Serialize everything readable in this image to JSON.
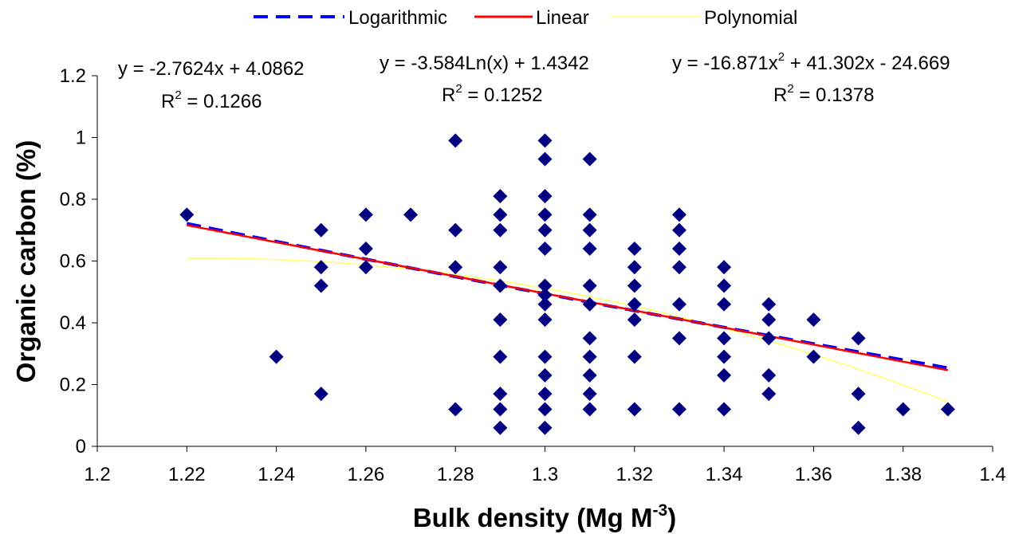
{
  "chart_data": {
    "type": "scatter",
    "xlabel": "Bulk density (Mg M",
    "xlabel_sup": "-3",
    "xlabel_suffix": ")",
    "ylabel": "Organic carbon (%)",
    "xlim": [
      1.2,
      1.4
    ],
    "ylim": [
      0,
      1.2
    ],
    "xticks": [
      "1.2",
      "1.22",
      "1.24",
      "1.26",
      "1.28",
      "1.3",
      "1.32",
      "1.34",
      "1.36",
      "1.38",
      "1.4"
    ],
    "yticks": [
      "0",
      "0.2",
      "0.4",
      "0.6",
      "0.8",
      "1",
      "1.2"
    ],
    "grid": false,
    "legend_position": "top",
    "marker_color": "#000080",
    "points": [
      [
        1.22,
        0.75
      ],
      [
        1.24,
        0.29
      ],
      [
        1.25,
        0.7
      ],
      [
        1.25,
        0.58
      ],
      [
        1.25,
        0.52
      ],
      [
        1.25,
        0.17
      ],
      [
        1.26,
        0.75
      ],
      [
        1.26,
        0.64
      ],
      [
        1.26,
        0.58
      ],
      [
        1.27,
        0.75
      ],
      [
        1.28,
        0.99
      ],
      [
        1.28,
        0.7
      ],
      [
        1.28,
        0.58
      ],
      [
        1.28,
        0.12
      ],
      [
        1.29,
        0.81
      ],
      [
        1.29,
        0.75
      ],
      [
        1.29,
        0.7
      ],
      [
        1.29,
        0.58
      ],
      [
        1.29,
        0.52
      ],
      [
        1.29,
        0.41
      ],
      [
        1.29,
        0.29
      ],
      [
        1.29,
        0.17
      ],
      [
        1.29,
        0.12
      ],
      [
        1.29,
        0.06
      ],
      [
        1.3,
        0.99
      ],
      [
        1.3,
        0.93
      ],
      [
        1.3,
        0.81
      ],
      [
        1.3,
        0.75
      ],
      [
        1.3,
        0.7
      ],
      [
        1.3,
        0.64
      ],
      [
        1.3,
        0.52
      ],
      [
        1.3,
        0.49
      ],
      [
        1.3,
        0.46
      ],
      [
        1.3,
        0.41
      ],
      [
        1.3,
        0.29
      ],
      [
        1.3,
        0.23
      ],
      [
        1.3,
        0.17
      ],
      [
        1.3,
        0.12
      ],
      [
        1.3,
        0.06
      ],
      [
        1.31,
        0.93
      ],
      [
        1.31,
        0.75
      ],
      [
        1.31,
        0.7
      ],
      [
        1.31,
        0.64
      ],
      [
        1.31,
        0.52
      ],
      [
        1.31,
        0.46
      ],
      [
        1.31,
        0.35
      ],
      [
        1.31,
        0.29
      ],
      [
        1.31,
        0.23
      ],
      [
        1.31,
        0.17
      ],
      [
        1.31,
        0.12
      ],
      [
        1.32,
        0.64
      ],
      [
        1.32,
        0.58
      ],
      [
        1.32,
        0.52
      ],
      [
        1.32,
        0.46
      ],
      [
        1.32,
        0.41
      ],
      [
        1.32,
        0.29
      ],
      [
        1.32,
        0.12
      ],
      [
        1.33,
        0.75
      ],
      [
        1.33,
        0.7
      ],
      [
        1.33,
        0.64
      ],
      [
        1.33,
        0.58
      ],
      [
        1.33,
        0.46
      ],
      [
        1.33,
        0.35
      ],
      [
        1.33,
        0.12
      ],
      [
        1.34,
        0.58
      ],
      [
        1.34,
        0.52
      ],
      [
        1.34,
        0.46
      ],
      [
        1.34,
        0.35
      ],
      [
        1.34,
        0.29
      ],
      [
        1.34,
        0.23
      ],
      [
        1.34,
        0.12
      ],
      [
        1.35,
        0.46
      ],
      [
        1.35,
        0.41
      ],
      [
        1.35,
        0.35
      ],
      [
        1.35,
        0.23
      ],
      [
        1.35,
        0.17
      ],
      [
        1.36,
        0.41
      ],
      [
        1.36,
        0.29
      ],
      [
        1.37,
        0.35
      ],
      [
        1.37,
        0.17
      ],
      [
        1.37,
        0.06
      ],
      [
        1.38,
        0.12
      ],
      [
        1.39,
        0.12
      ]
    ],
    "series": [
      {
        "name": "Logarithmic",
        "color": "#0000FF",
        "dash": true,
        "equation": "y = -3.584Ln(x) + 1.4342",
        "r2_value": "0.1252",
        "coef": {
          "a": -3.584,
          "b": 1.4342
        }
      },
      {
        "name": "Linear",
        "color": "#FF0000",
        "dash": false,
        "equation": "y = -2.7624x + 4.0862",
        "r2_value": "0.1266",
        "coef": {
          "m": -2.7624,
          "c": 4.0862
        }
      },
      {
        "name": "Polynomial",
        "color": "#FFFF66",
        "dash": false,
        "equation_a": "y = -16.871x",
        "equation_sup": "2",
        "equation_b": " + 41.302x - 24.669",
        "r2_value": "0.1378",
        "coef": {
          "a": -16.871,
          "b": 41.302,
          "c": -24.669
        }
      }
    ],
    "r2_prefix": "R",
    "r2_sup": "2",
    "r2_mid": " = "
  }
}
